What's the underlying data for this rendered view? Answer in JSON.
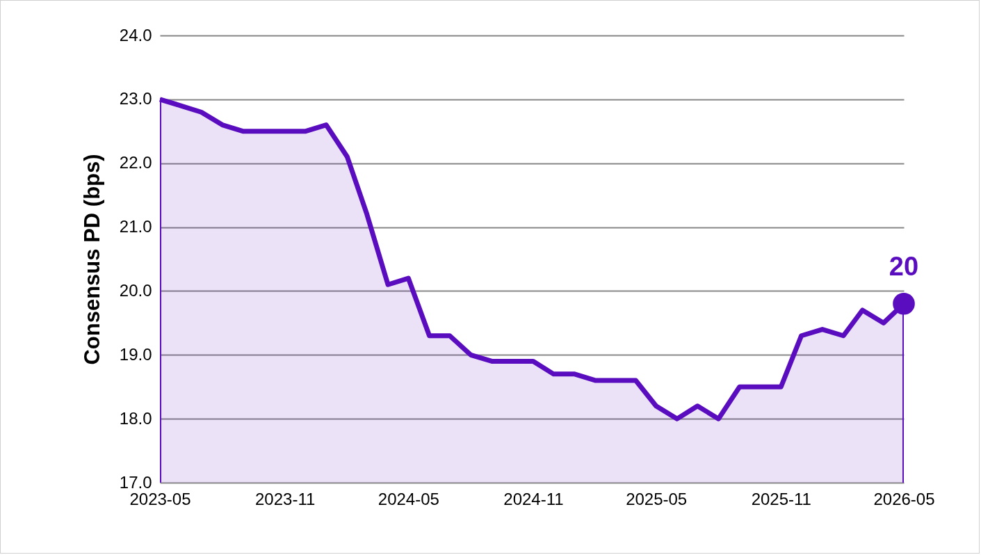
{
  "chart_data": {
    "type": "area",
    "ylabel": "Consensus PD (bps)",
    "x": [
      "2023-05",
      "2023-06",
      "2023-07",
      "2023-08",
      "2023-09",
      "2023-10",
      "2023-11",
      "2023-12",
      "2024-01",
      "2024-02",
      "2024-03",
      "2024-04",
      "2024-05",
      "2024-06",
      "2024-07",
      "2024-08",
      "2024-09",
      "2024-10",
      "2024-11",
      "2024-12",
      "2025-01",
      "2025-02",
      "2025-03",
      "2025-04",
      "2025-05",
      "2025-06",
      "2025-07",
      "2025-08",
      "2025-09",
      "2025-10",
      "2025-11",
      "2025-12",
      "2026-01",
      "2026-02",
      "2026-03",
      "2026-04",
      "2026-05"
    ],
    "series": [
      {
        "color": "#5a0dbf",
        "values": [
          23.0,
          22.9,
          22.8,
          22.6,
          22.5,
          22.5,
          22.5,
          22.5,
          22.6,
          22.1,
          21.2,
          20.1,
          20.2,
          19.3,
          19.3,
          19.0,
          18.9,
          18.9,
          18.9,
          18.7,
          18.7,
          18.6,
          18.6,
          18.6,
          18.2,
          18.0,
          18.2,
          18.0,
          18.5,
          18.5,
          18.5,
          19.3,
          19.4,
          19.3,
          19.7,
          19.5,
          19.8
        ],
        "value_labels": [
          null,
          null,
          null,
          null,
          null,
          null,
          null,
          null,
          null,
          null,
          null,
          null,
          null,
          null,
          null,
          null,
          null,
          null,
          null,
          null,
          null,
          null,
          null,
          null,
          null,
          null,
          null,
          null,
          null,
          null,
          null,
          null,
          null,
          null,
          null,
          null,
          "20"
        ]
      }
    ],
    "xlim": [
      "2023-05",
      "2026-05"
    ],
    "xticks": [
      "2023-05",
      "2023-11",
      "2024-05",
      "2024-11",
      "2025-05",
      "2025-11",
      "2026-05"
    ],
    "ylim": [
      17,
      24
    ],
    "yticks": [
      {
        "value": 17,
        "label": "17.0"
      },
      {
        "value": 18,
        "label": "18.0"
      },
      {
        "value": 19,
        "label": "19.0"
      },
      {
        "value": 20,
        "label": "20.0"
      },
      {
        "value": 21,
        "label": "21.0"
      },
      {
        "value": 22,
        "label": "22.0"
      },
      {
        "value": 23,
        "label": "23.0"
      },
      {
        "value": 24,
        "label": "24.0"
      }
    ],
    "grid": "y"
  }
}
